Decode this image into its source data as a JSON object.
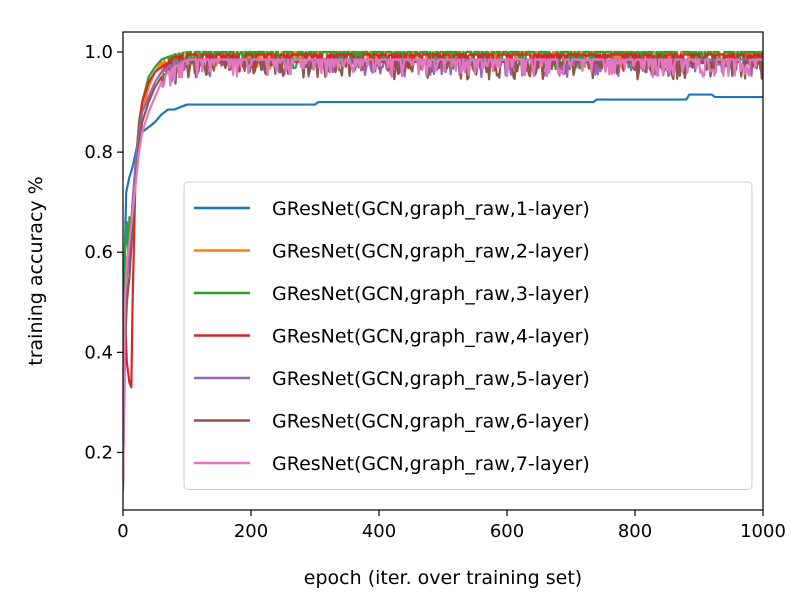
{
  "chart_data": {
    "type": "line",
    "xlabel": "epoch (iter. over training set)",
    "ylabel": "training accuracy %",
    "xlim": [
      0,
      1000
    ],
    "ylim": [
      0.085,
      1.04
    ],
    "x_ticks": [
      0,
      200,
      400,
      600,
      800,
      1000
    ],
    "y_ticks": [
      0.2,
      0.4,
      0.6,
      0.8,
      1.0
    ],
    "x_tick_labels": [
      "0",
      "200",
      "400",
      "600",
      "800",
      "1000"
    ],
    "y_tick_labels": [
      "0.2",
      "0.4",
      "0.6",
      "0.8",
      "1.0"
    ],
    "grid": false,
    "legend_position": "center-right",
    "series": [
      {
        "name": "GResNet(GCN,graph_raw,1-layer)",
        "color": "#1f77b4",
        "x": [
          0,
          2,
          5,
          10,
          15,
          20,
          25,
          30,
          40,
          50,
          60,
          70,
          80,
          90,
          100,
          110,
          150,
          200,
          250,
          300,
          305,
          400,
          500,
          600,
          700,
          735,
          740,
          800,
          880,
          885,
          920,
          925,
          1000
        ],
        "y": [
          0.15,
          0.55,
          0.72,
          0.75,
          0.77,
          0.8,
          0.83,
          0.84,
          0.85,
          0.86,
          0.875,
          0.885,
          0.885,
          0.89,
          0.895,
          0.895,
          0.895,
          0.895,
          0.895,
          0.895,
          0.9,
          0.9,
          0.9,
          0.9,
          0.9,
          0.9,
          0.905,
          0.905,
          0.905,
          0.915,
          0.915,
          0.91,
          0.91
        ]
      },
      {
        "name": "GResNet(GCN,graph_raw,2-layer)",
        "color": "#ff7f0e",
        "x": [
          0,
          3,
          6,
          10,
          15,
          20,
          25,
          30,
          40,
          50,
          60,
          70,
          80,
          100,
          150,
          200,
          300,
          400,
          500,
          600,
          700,
          800,
          900,
          1000
        ],
        "y": [
          0.15,
          0.45,
          0.58,
          0.63,
          0.66,
          0.75,
          0.85,
          0.88,
          0.93,
          0.96,
          0.98,
          0.99,
          0.995,
          1.0,
          1.0,
          1.0,
          1.0,
          1.0,
          1.0,
          1.0,
          1.0,
          1.0,
          1.0,
          1.0
        ]
      },
      {
        "name": "GResNet(GCN,graph_raw,3-layer)",
        "color": "#2ca02c",
        "x": [
          0,
          3,
          6,
          8,
          10,
          12,
          15,
          20,
          25,
          30,
          40,
          50,
          60,
          70,
          80,
          100,
          150,
          200,
          300,
          400,
          500,
          600,
          700,
          800,
          900,
          1000
        ],
        "y": [
          0.15,
          0.6,
          0.66,
          0.6,
          0.67,
          0.64,
          0.7,
          0.78,
          0.86,
          0.9,
          0.95,
          0.97,
          0.985,
          0.99,
          0.995,
          1.0,
          1.0,
          1.0,
          1.0,
          1.0,
          1.0,
          1.0,
          1.0,
          1.0,
          1.0,
          1.0
        ]
      },
      {
        "name": "GResNet(GCN,graph_raw,4-layer)",
        "color": "#d62728",
        "x": [
          0,
          3,
          6,
          10,
          13,
          15,
          20,
          25,
          30,
          35,
          40,
          50,
          60,
          70,
          80,
          100,
          150,
          200,
          300,
          400,
          500,
          600,
          700,
          800,
          900,
          1000
        ],
        "y": [
          0.15,
          0.48,
          0.38,
          0.34,
          0.33,
          0.5,
          0.78,
          0.85,
          0.9,
          0.92,
          0.94,
          0.96,
          0.97,
          0.98,
          0.99,
          0.995,
          0.995,
          0.995,
          0.995,
          0.995,
          0.995,
          0.995,
          0.995,
          0.995,
          0.995,
          0.995
        ]
      },
      {
        "name": "GResNet(GCN,graph_raw,5-layer)",
        "color": "#9467bd",
        "x": [
          0,
          3,
          6,
          10,
          15,
          20,
          25,
          30,
          40,
          50,
          60,
          70,
          80,
          100,
          150,
          200,
          300,
          400,
          500,
          600,
          700,
          800,
          900,
          1000
        ],
        "y": [
          0.13,
          0.45,
          0.55,
          0.6,
          0.7,
          0.78,
          0.84,
          0.88,
          0.91,
          0.94,
          0.96,
          0.97,
          0.98,
          0.985,
          0.985,
          0.985,
          0.985,
          0.985,
          0.985,
          0.985,
          0.985,
          0.985,
          0.985,
          0.985
        ]
      },
      {
        "name": "GResNet(GCN,graph_raw,6-layer)",
        "color": "#8c564b",
        "x": [
          0,
          3,
          6,
          10,
          15,
          20,
          25,
          30,
          40,
          50,
          60,
          70,
          80,
          100,
          150,
          200,
          300,
          400,
          500,
          600,
          700,
          800,
          900,
          1000
        ],
        "y": [
          0.13,
          0.4,
          0.5,
          0.55,
          0.65,
          0.75,
          0.82,
          0.86,
          0.9,
          0.93,
          0.95,
          0.96,
          0.97,
          0.98,
          0.98,
          0.98,
          0.98,
          0.98,
          0.98,
          0.98,
          0.98,
          0.98,
          0.98,
          0.98
        ]
      },
      {
        "name": "GResNet(GCN,graph_raw,7-layer)",
        "color": "#e377c2",
        "x": [
          0,
          3,
          6,
          10,
          15,
          20,
          25,
          30,
          40,
          50,
          60,
          70,
          80,
          100,
          150,
          200,
          300,
          400,
          500,
          600,
          700,
          800,
          900,
          1000
        ],
        "y": [
          0.12,
          0.5,
          0.58,
          0.62,
          0.68,
          0.74,
          0.8,
          0.84,
          0.88,
          0.91,
          0.94,
          0.96,
          0.97,
          0.985,
          0.985,
          0.985,
          0.985,
          0.985,
          0.985,
          0.985,
          0.985,
          0.985,
          0.985,
          0.985
        ]
      }
    ]
  }
}
